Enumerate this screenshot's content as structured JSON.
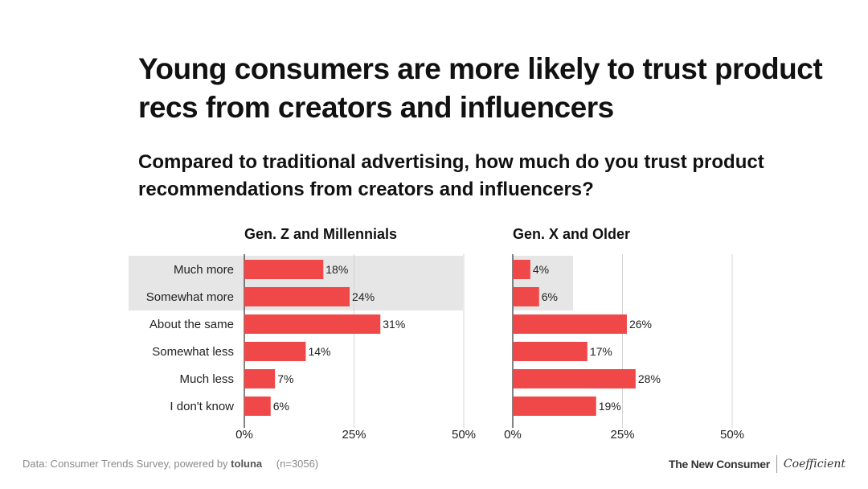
{
  "title": "Young consumers are more likely to trust product recs from creators and influencers",
  "subtitle": "Compared to traditional advertising, how much do you trust product recommendations from creators and influencers?",
  "chart_data": {
    "type": "bar",
    "orientation": "horizontal",
    "categories": [
      "Much more",
      "Somewhat more",
      "About the same",
      "Somewhat less",
      "Much less",
      "I don't know"
    ],
    "series": [
      {
        "name": "Gen. Z and Millennials",
        "values": [
          18,
          24,
          31,
          14,
          7,
          6
        ]
      },
      {
        "name": "Gen. X and Older",
        "values": [
          4,
          6,
          26,
          17,
          28,
          19
        ]
      }
    ],
    "value_suffix": "%",
    "xlim": [
      0,
      50
    ],
    "xticks": [
      "0%",
      "25%",
      "50%"
    ],
    "grid": true,
    "highlighted_categories": [
      "Much more",
      "Somewhat more"
    ],
    "bar_color": "#f04848",
    "highlight_color": "#e6e6e6"
  },
  "footer": {
    "source_prefix": "Data: Consumer Trends Survey, powered by",
    "source_brand": "toluna",
    "sample": "(n=3056)",
    "brand_left": "The New Consumer",
    "brand_right": "Coefficient"
  }
}
